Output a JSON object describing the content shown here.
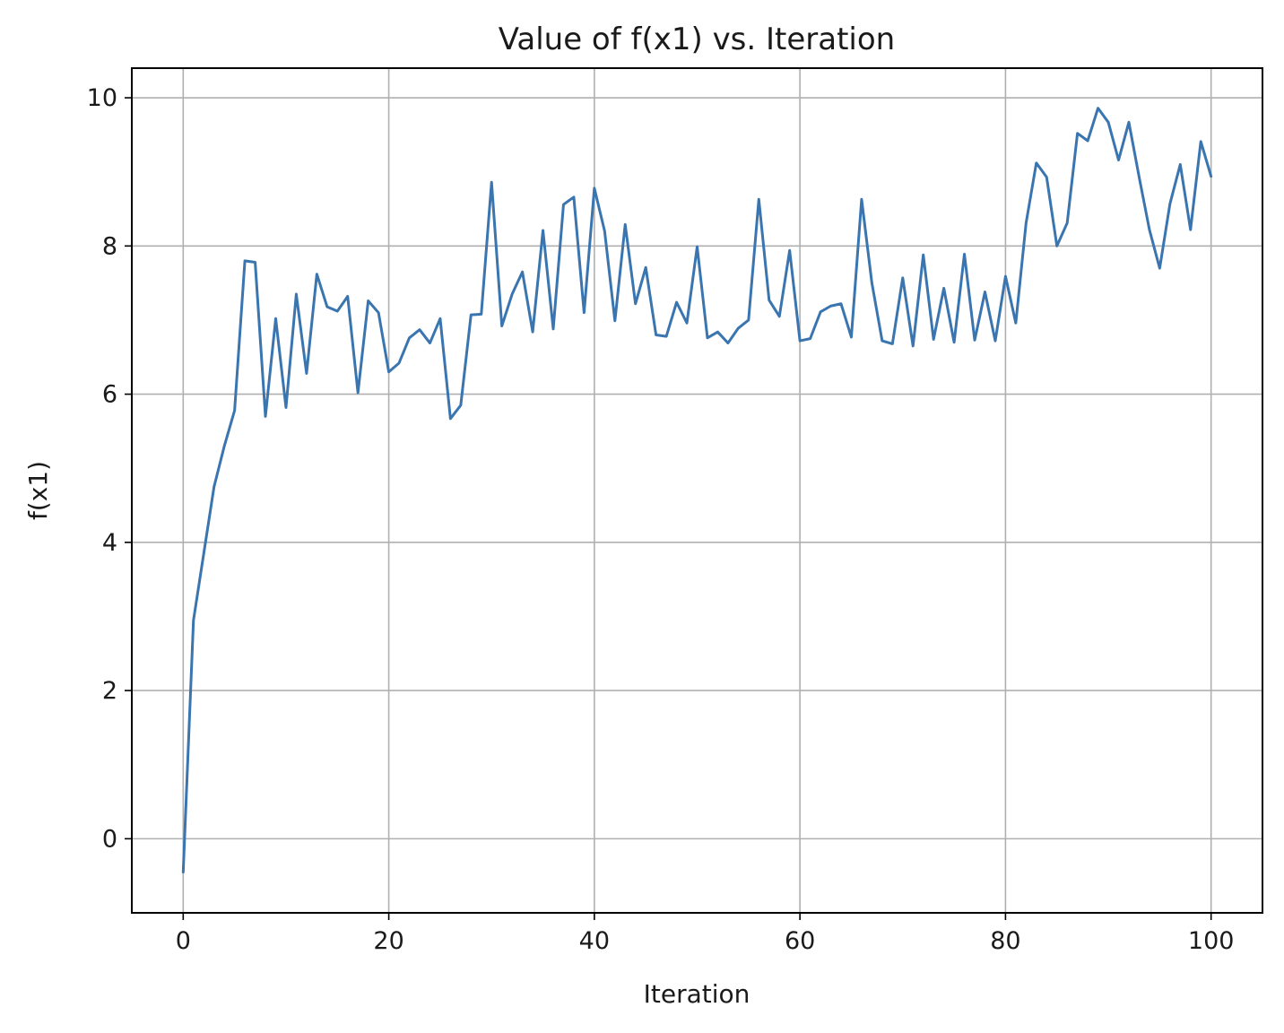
{
  "chart_data": {
    "type": "line",
    "title": "Value of f(x1) vs. Iteration",
    "xlabel": "Iteration",
    "ylabel": "f(x1)",
    "xlim": [
      -5,
      105
    ],
    "ylim": [
      -1,
      10.4
    ],
    "xticks": [
      0,
      20,
      40,
      60,
      80,
      100
    ],
    "yticks": [
      0,
      2,
      4,
      6,
      8,
      10
    ],
    "grid": true,
    "color": "#3a75b0",
    "series": [
      {
        "x": [
          0,
          1,
          2,
          3,
          4,
          5,
          6,
          7,
          8,
          9,
          10,
          11,
          12,
          13,
          14,
          15,
          16,
          17,
          18,
          19,
          20,
          21,
          22,
          23,
          24,
          25,
          26,
          27,
          28,
          29,
          30,
          31,
          32,
          33,
          34,
          35,
          36,
          37,
          38,
          39,
          40,
          41,
          42,
          43,
          44,
          45,
          46,
          47,
          48,
          49,
          50,
          51,
          52,
          53,
          54,
          55,
          56,
          57,
          58,
          59,
          60,
          61,
          62,
          63,
          64,
          65,
          66,
          67,
          68,
          69,
          70,
          71,
          72,
          73,
          74,
          75,
          76,
          77,
          78,
          79,
          80,
          81,
          82,
          83,
          84,
          85,
          86,
          87,
          88,
          89,
          90,
          91,
          92,
          93,
          94,
          95,
          96,
          97,
          98,
          99,
          100
        ],
        "y": [
          -0.45,
          2.95,
          3.85,
          4.75,
          5.3,
          5.78,
          7.8,
          7.78,
          5.7,
          7.02,
          5.82,
          7.35,
          6.28,
          7.62,
          7.18,
          7.12,
          7.32,
          6.02,
          7.26,
          7.1,
          6.3,
          6.42,
          6.76,
          6.87,
          6.69,
          7.02,
          5.67,
          5.85,
          7.07,
          7.08,
          8.86,
          6.92,
          7.35,
          7.65,
          6.84,
          8.21,
          6.88,
          8.56,
          8.66,
          7.1,
          8.78,
          8.2,
          6.99,
          8.29,
          7.22,
          7.71,
          6.8,
          6.78,
          7.24,
          6.96,
          7.99,
          6.76,
          6.84,
          6.69,
          6.89,
          7.0,
          8.63,
          7.27,
          7.05,
          7.94,
          6.72,
          6.75,
          7.11,
          7.19,
          7.22,
          6.77,
          8.63,
          7.5,
          6.72,
          6.68,
          7.57,
          6.65,
          7.88,
          6.74,
          7.43,
          6.7,
          7.89,
          6.73,
          7.38,
          6.72,
          7.59,
          6.96,
          8.31,
          9.12,
          8.93,
          8.0,
          8.31,
          9.52,
          9.42,
          9.86,
          9.67,
          9.16,
          9.67,
          8.93,
          8.22,
          7.7,
          8.57,
          9.1,
          8.22,
          9.41,
          8.94
        ]
      }
    ]
  }
}
